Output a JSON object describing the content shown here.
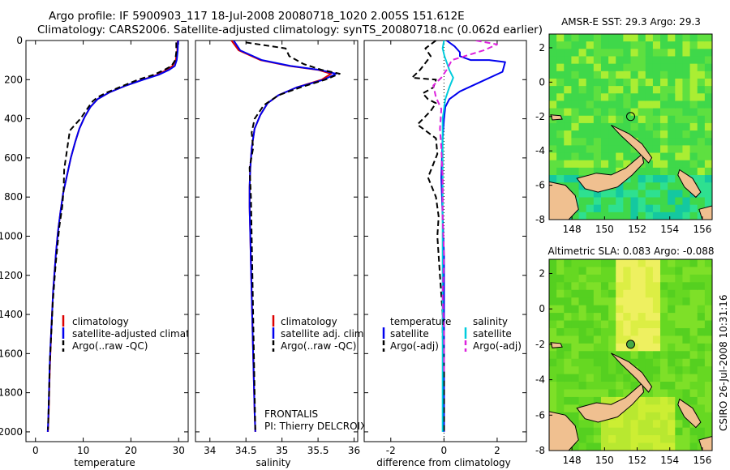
{
  "title": {
    "line1": "Argo profile: IF 5900903_117 18-Jul-2008 20080718_1020 2.005S 151.612E",
    "line2": "Climatology: CARS2006. Satellite-adjusted climatology: synTS_20080718.nc (0.062d earlier)"
  },
  "side_text": "CSIRO 26-Jul-2008 10:31:16",
  "chart_data": [
    {
      "type": "line",
      "xlabel": "temperature",
      "ylabel": "",
      "xlim": [
        -2,
        32
      ],
      "ylim": [
        2050,
        0
      ],
      "xticks": [
        0,
        10,
        20,
        30
      ],
      "yticks": [
        0,
        200,
        400,
        600,
        800,
        1000,
        1200,
        1400,
        1600,
        1800,
        2000
      ],
      "legend": [
        "climatology",
        "satellite-adjusted climatology",
        "Argo(..raw -QC)"
      ],
      "legend_position": "lower-left",
      "series": [
        {
          "name": "climatology",
          "color": "#dd0000",
          "dash": "solid",
          "x": [
            29.8,
            29.7,
            29.4,
            28.7,
            27.5,
            25.5,
            22.5,
            19.0,
            15.5,
            13.0,
            11.5,
            10.3,
            9.2,
            8.3,
            7.4,
            6.6,
            5.8,
            5.2,
            4.7,
            4.3,
            4.0,
            3.7,
            3.5,
            3.3,
            3.15,
            3.0,
            2.9,
            2.8,
            2.7,
            2.6
          ],
          "y": [
            0,
            50,
            100,
            130,
            150,
            175,
            200,
            230,
            265,
            300,
            340,
            390,
            450,
            520,
            600,
            690,
            780,
            880,
            980,
            1080,
            1180,
            1280,
            1380,
            1480,
            1580,
            1680,
            1780,
            1880,
            1950,
            2000
          ]
        },
        {
          "name": "satellite-adjusted climatology",
          "color": "#0000ee",
          "dash": "solid",
          "x": [
            29.9,
            29.8,
            29.6,
            29.2,
            28.0,
            25.8,
            22.6,
            19.0,
            15.5,
            13.0,
            11.5,
            10.3,
            9.2,
            8.3,
            7.4,
            6.6,
            5.8,
            5.2,
            4.7,
            4.3,
            4.0,
            3.7,
            3.5,
            3.3,
            3.1,
            2.95,
            2.85,
            2.75,
            2.65,
            2.55
          ],
          "y": [
            0,
            50,
            100,
            130,
            150,
            175,
            200,
            230,
            265,
            300,
            340,
            390,
            450,
            520,
            600,
            690,
            780,
            880,
            980,
            1080,
            1180,
            1280,
            1380,
            1480,
            1580,
            1680,
            1780,
            1880,
            1950,
            2000
          ]
        },
        {
          "name": "Argo(..raw -QC)",
          "color": "#000000",
          "dash": "dash",
          "x": [
            29.5,
            29.5,
            29.3,
            28.5,
            27.0,
            24.8,
            21.5,
            18.5,
            15.0,
            13.0,
            12.0,
            11.4,
            9.4,
            7.2,
            6.6,
            6.0,
            5.9,
            5.6,
            5.0,
            4.6,
            4.2,
            3.9,
            3.6,
            3.4,
            3.2,
            3.0,
            2.9,
            2.8,
            2.7,
            2.6
          ],
          "y": [
            10,
            60,
            100,
            130,
            150,
            175,
            200,
            230,
            265,
            290,
            310,
            330,
            400,
            460,
            560,
            660,
            760,
            850,
            950,
            1050,
            1150,
            1250,
            1350,
            1450,
            1550,
            1650,
            1750,
            1850,
            1930,
            1990
          ]
        }
      ]
    },
    {
      "type": "line",
      "xlabel": "salinity",
      "ylabel": "",
      "xlim": [
        33.8,
        36.05
      ],
      "ylim": [
        2050,
        0
      ],
      "xticks": [
        34,
        34.5,
        35,
        35.5,
        36
      ],
      "legend": [
        "climatology",
        "satellite adj. clim.",
        "Argo(..raw -QC)"
      ],
      "legend_position": "lower-center",
      "annotation": [
        "FRONTALIS",
        "PI: Thierry DELCROIX"
      ],
      "series": [
        {
          "name": "climatology",
          "color": "#dd0000",
          "dash": "solid",
          "x": [
            34.3,
            34.4,
            34.7,
            35.1,
            35.5,
            35.68,
            35.55,
            35.2,
            34.95,
            34.8,
            34.7,
            34.62,
            34.58,
            34.56,
            34.55,
            34.55,
            34.56,
            34.57,
            34.58,
            34.59,
            34.6,
            34.61,
            34.62,
            34.63
          ],
          "y": [
            0,
            50,
            100,
            130,
            150,
            170,
            200,
            240,
            280,
            320,
            380,
            450,
            550,
            650,
            750,
            850,
            1000,
            1150,
            1300,
            1450,
            1600,
            1750,
            1900,
            2000
          ]
        },
        {
          "name": "satellite adj. clim.",
          "color": "#0000ee",
          "dash": "solid",
          "x": [
            34.33,
            34.42,
            34.72,
            35.12,
            35.52,
            35.75,
            35.58,
            35.2,
            34.95,
            34.8,
            34.7,
            34.62,
            34.58,
            34.56,
            34.55,
            34.55,
            34.56,
            34.57,
            34.58,
            34.59,
            34.6,
            34.61,
            34.62,
            34.63
          ],
          "y": [
            0,
            50,
            100,
            130,
            150,
            170,
            200,
            240,
            280,
            320,
            380,
            450,
            550,
            650,
            750,
            850,
            1000,
            1150,
            1300,
            1450,
            1600,
            1750,
            1900,
            2000
          ]
        },
        {
          "name": "Argo(..raw -QC)",
          "color": "#000000",
          "dash": "dash",
          "x": [
            34.5,
            35.05,
            35.1,
            35.3,
            35.55,
            35.8,
            35.6,
            35.25,
            34.95,
            34.75,
            34.62,
            34.58,
            34.6,
            34.55,
            34.57,
            34.58,
            34.59,
            34.6,
            34.61,
            34.62,
            34.63
          ],
          "y": [
            10,
            40,
            80,
            120,
            150,
            170,
            200,
            240,
            280,
            330,
            400,
            470,
            550,
            650,
            800,
            1000,
            1200,
            1400,
            1600,
            1800,
            1990
          ]
        }
      ]
    },
    {
      "type": "line",
      "xlabel": "difference from climatology",
      "ylabel": "",
      "xlim": [
        -3,
        3.1
      ],
      "ylim": [
        2050,
        0
      ],
      "xticks": [
        -2,
        0,
        2
      ],
      "legend": [
        "temperature",
        "satellite",
        "Argo(-adj)",
        "salinity",
        "satellite",
        "Argo(-adj)"
      ],
      "legend_position": "lower",
      "series": [
        {
          "name": "temperature satellite",
          "color": "#0000ee",
          "dash": "solid",
          "x": [
            0.1,
            0.4,
            0.6,
            0.6,
            1.0,
            1.7,
            2.3,
            2.2,
            1.4,
            0.6,
            0.2,
            0.05,
            0.0,
            -0.05,
            -0.1,
            -0.05,
            0.0,
            0.0,
            0.0,
            0.0,
            0.0,
            0.0
          ],
          "y": [
            0,
            30,
            60,
            80,
            100,
            100,
            110,
            160,
            210,
            260,
            300,
            340,
            400,
            500,
            700,
            900,
            1100,
            1300,
            1500,
            1700,
            1900,
            2000
          ]
        },
        {
          "name": "temperature Argo(-adj)",
          "color": "#000000",
          "dash": "dash",
          "x": [
            -0.3,
            -0.7,
            -0.5,
            -0.9,
            -1.2,
            -0.3,
            -0.4,
            -0.8,
            -0.6,
            -0.3,
            -0.5,
            -1.0,
            -0.3,
            -0.25,
            -0.6,
            -0.3,
            -0.2,
            -0.25,
            -0.2,
            -0.15,
            -0.1,
            -0.05,
            -0.05,
            0.0,
            0.0
          ],
          "y": [
            0,
            40,
            80,
            150,
            190,
            200,
            240,
            270,
            300,
            320,
            360,
            430,
            500,
            580,
            700,
            800,
            900,
            1000,
            1100,
            1200,
            1300,
            1400,
            1500,
            1700,
            2000
          ]
        },
        {
          "name": "salinity satellite",
          "color": "#00ccdd",
          "dash": "solid",
          "x": [
            0.0,
            -0.05,
            0.02,
            0.1,
            0.2,
            0.35,
            0.2,
            0.05,
            0.0,
            -0.05,
            -0.05,
            -0.05,
            -0.05,
            -0.05,
            -0.05,
            -0.05,
            -0.05,
            -0.05,
            -0.05,
            -0.05
          ],
          "y": [
            0,
            40,
            80,
            110,
            150,
            190,
            240,
            300,
            350,
            400,
            500,
            700,
            900,
            1100,
            1300,
            1500,
            1600,
            1700,
            1850,
            2000
          ]
        },
        {
          "name": "salinity Argo(-adj)",
          "color": "#dd22dd",
          "dash": "dash",
          "x": [
            1.2,
            2.0,
            1.5,
            0.3,
            0.1,
            -0.1,
            -0.4,
            -0.3,
            -0.1,
            -0.15,
            -0.1,
            -0.05,
            -0.05,
            0.0,
            -0.05,
            0.0,
            0.0
          ],
          "y": [
            0,
            20,
            50,
            100,
            150,
            190,
            230,
            290,
            350,
            450,
            550,
            700,
            900,
            1100,
            1300,
            1500,
            1700
          ]
        }
      ]
    },
    {
      "type": "heatmap",
      "title": "AMSR-E SST: 29.3 Argo: 29.3",
      "xlim": [
        146.6,
        156.6
      ],
      "ylim": [
        -8,
        2.8
      ],
      "xticks": [
        148,
        150,
        152,
        154,
        156
      ],
      "yticks": [
        -8,
        -6,
        -4,
        -2,
        0,
        2
      ],
      "marker": {
        "lon": 151.6,
        "lat": -2.0
      }
    },
    {
      "type": "heatmap",
      "title": "Altimetric SLA: 0.083 Argo: -0.088",
      "xlim": [
        146.6,
        156.6
      ],
      "ylim": [
        -8,
        2.8
      ],
      "xticks": [
        148,
        150,
        152,
        154,
        156
      ],
      "yticks": [
        -8,
        -6,
        -4,
        -2,
        0,
        2
      ],
      "marker": {
        "lon": 151.6,
        "lat": -2.0
      }
    }
  ]
}
